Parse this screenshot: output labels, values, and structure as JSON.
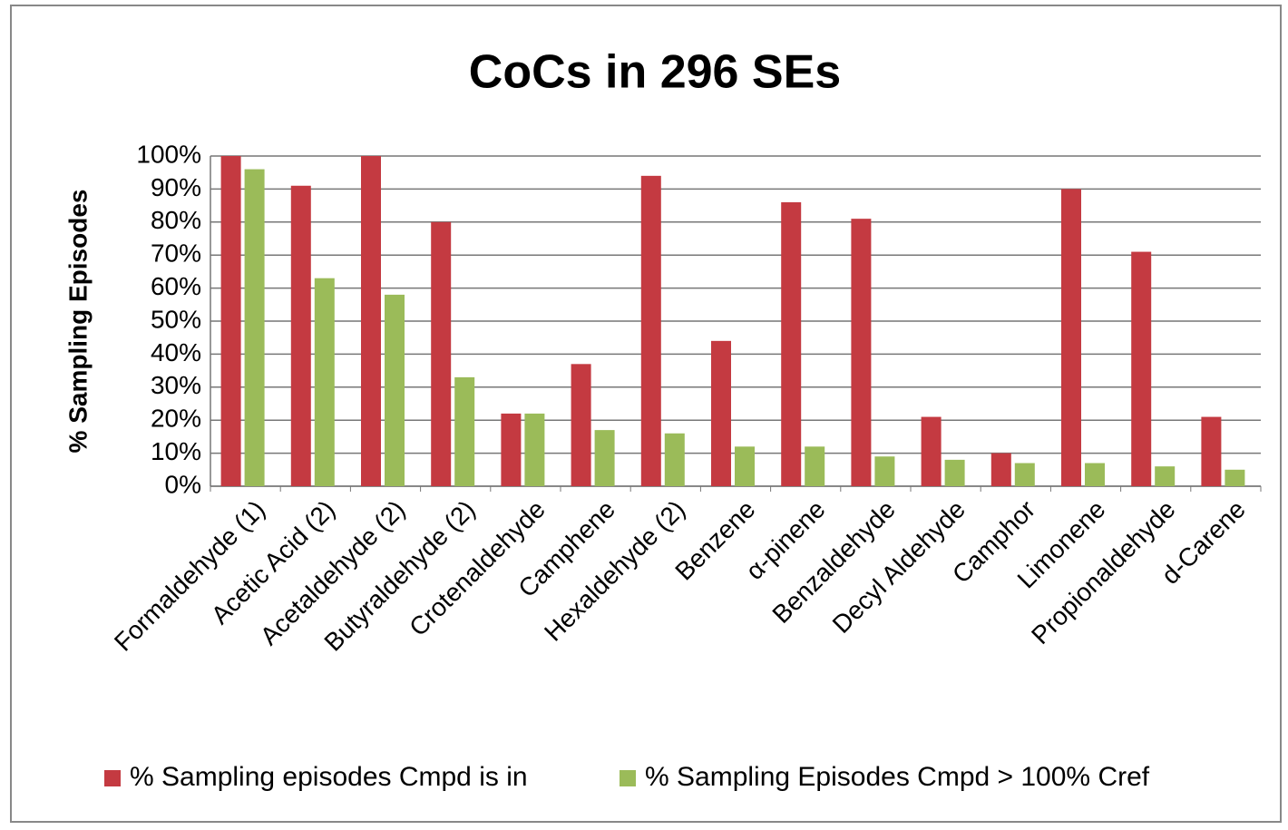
{
  "chart_data": {
    "type": "bar",
    "title": "CoCs in 296 SEs",
    "y_label": "% Sampling Episodes",
    "categories": [
      "Formaldehyde (1)",
      "Acetic Acid (2)",
      "Acetaldehyde (2)",
      "Butyraldehyde (2)",
      "Crotenaldehyde",
      "Camphene",
      "Hexaldehyde (2)",
      "Benzene",
      "α-pinene",
      "Benzaldehyde",
      "Decyl Aldehyde",
      "Camphor",
      "Limonene",
      "Propionaldehyde",
      "d-Carene"
    ],
    "series": [
      {
        "name": "% Sampling episodes Cmpd is in",
        "color": "#c43a41",
        "values": [
          100,
          91,
          100,
          80,
          22,
          37,
          94,
          44,
          86,
          81,
          21,
          10,
          90,
          71,
          21
        ]
      },
      {
        "name": "% Sampling Episodes Cmpd > 100% Cref",
        "color": "#9bbb59",
        "values": [
          96,
          63,
          58,
          33,
          22,
          17,
          16,
          12,
          12,
          9,
          8,
          7,
          7,
          6,
          5
        ]
      }
    ],
    "ylim": [
      0,
      100
    ],
    "yticks": [
      {
        "value": 0,
        "label": "0%"
      },
      {
        "value": 10,
        "label": "10%"
      },
      {
        "value": 20,
        "label": "20%"
      },
      {
        "value": 30,
        "label": "30%"
      },
      {
        "value": 40,
        "label": "40%"
      },
      {
        "value": 50,
        "label": "50%"
      },
      {
        "value": 60,
        "label": "60%"
      },
      {
        "value": 70,
        "label": "70%"
      },
      {
        "value": 80,
        "label": "80%"
      },
      {
        "value": 90,
        "label": "90%"
      },
      {
        "value": 100,
        "label": "100%"
      }
    ],
    "grid": true,
    "legend": "bottom"
  }
}
